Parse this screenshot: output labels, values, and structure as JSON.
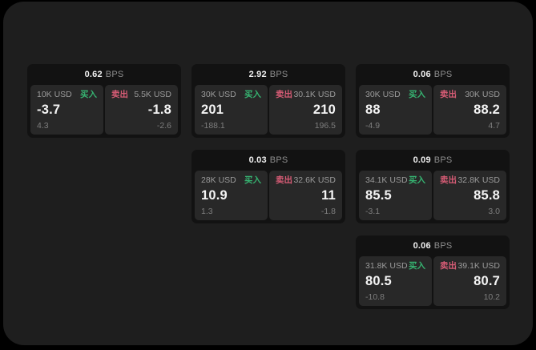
{
  "page": {
    "background": "#000000",
    "panel_background": "#1e1e1e",
    "card_background": "#121212",
    "tile_background": "#282828"
  },
  "colors": {
    "buy_green": "#36b371",
    "sell_red": "#d85c76",
    "value_white": "#f4f4f4",
    "label_gray": "#9a9a9a",
    "muted_gray": "#7e7e7e"
  },
  "labels": {
    "bps_unit": "BPS",
    "buy": "买入",
    "sell": "卖出"
  },
  "cards": [
    {
      "bps": "0.62",
      "buy": {
        "amount": "10K USD",
        "price": "-3.7",
        "delta": "4.3"
      },
      "sell": {
        "amount": "5.5K USD",
        "price": "-1.8",
        "delta": "-2.6"
      }
    },
    {
      "bps": "2.92",
      "buy": {
        "amount": "30K USD",
        "price": "201",
        "delta": "-188.1"
      },
      "sell": {
        "amount": "30.1K USD",
        "price": "210",
        "delta": "196.5"
      }
    },
    {
      "bps": "0.06",
      "buy": {
        "amount": "30K USD",
        "price": "88",
        "delta": "-4.9"
      },
      "sell": {
        "amount": "30K USD",
        "price": "88.2",
        "delta": "4.7"
      }
    },
    {
      "bps": "0.03",
      "buy": {
        "amount": "28K USD",
        "price": "10.9",
        "delta": "1.3"
      },
      "sell": {
        "amount": "32.6K USD",
        "price": "11",
        "delta": "-1.8"
      }
    },
    {
      "bps": "0.09",
      "buy": {
        "amount": "34.1K USD",
        "price": "85.5",
        "delta": "-3.1"
      },
      "sell": {
        "amount": "32.8K USD",
        "price": "85.8",
        "delta": "3.0"
      }
    },
    {
      "bps": "0.06",
      "buy": {
        "amount": "31.8K USD",
        "price": "80.5",
        "delta": "-10.8"
      },
      "sell": {
        "amount": "39.1K USD",
        "price": "80.7",
        "delta": "10.2"
      }
    }
  ]
}
